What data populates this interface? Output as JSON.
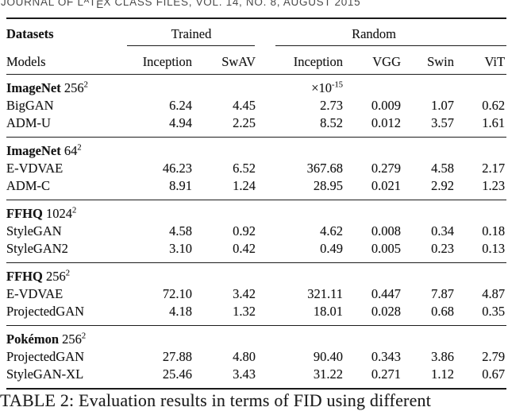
{
  "journal_header": {
    "p1": "JOURNAL OF L",
    "a": "A",
    "t": "T",
    "e": "E",
    "p2": "X CLASS FILES, VOL. 14, NO. 8, AUGUST 2015"
  },
  "table": {
    "col_group_label": "Datasets",
    "col_model_label": "Models",
    "groups": [
      {
        "label": "Trained"
      },
      {
        "label": "Random"
      }
    ],
    "columns": [
      "Inception",
      "SwAV",
      "Inception",
      "VGG",
      "Swin",
      "ViT"
    ],
    "sections": [
      {
        "dataset": "ImageNet",
        "resolution": "256",
        "sup": "2",
        "note_base": "×10",
        "note_exp": "-15",
        "rows": [
          {
            "model": "BigGAN",
            "values": [
              "6.24",
              "4.45",
              "2.73",
              "0.009",
              "1.07",
              "0.62"
            ]
          },
          {
            "model": "ADM-U",
            "values": [
              "4.94",
              "2.25",
              "8.52",
              "0.012",
              "3.57",
              "1.61"
            ]
          }
        ]
      },
      {
        "dataset": "ImageNet",
        "resolution": "64",
        "sup": "2",
        "rows": [
          {
            "model": "E-VDVAE",
            "values": [
              "46.23",
              "6.52",
              "367.68",
              "0.279",
              "4.58",
              "2.17"
            ]
          },
          {
            "model": "ADM-C",
            "values": [
              "8.91",
              "1.24",
              "28.95",
              "0.021",
              "2.92",
              "1.23"
            ]
          }
        ]
      },
      {
        "dataset": "FFHQ",
        "resolution": "1024",
        "sup": "2",
        "rows": [
          {
            "model": "StyleGAN",
            "values": [
              "4.58",
              "0.92",
              "4.62",
              "0.008",
              "0.34",
              "0.18"
            ]
          },
          {
            "model": "StyleGAN2",
            "values": [
              "3.10",
              "0.42",
              "0.49",
              "0.005",
              "0.23",
              "0.13"
            ]
          }
        ]
      },
      {
        "dataset": "FFHQ",
        "resolution": "256",
        "sup": "2",
        "rows": [
          {
            "model": "E-VDVAE",
            "values": [
              "72.10",
              "3.42",
              "321.11",
              "0.447",
              "7.87",
              "4.87"
            ]
          },
          {
            "model": "ProjectedGAN",
            "values": [
              "4.18",
              "1.32",
              "18.01",
              "0.028",
              "0.68",
              "0.35"
            ]
          }
        ]
      },
      {
        "dataset": "Pokémon",
        "resolution": "256",
        "sup": "2",
        "rows": [
          {
            "model": "ProjectedGAN",
            "values": [
              "27.88",
              "4.80",
              "90.40",
              "0.343",
              "3.86",
              "2.79"
            ]
          },
          {
            "model": "StyleGAN-XL",
            "values": [
              "25.46",
              "3.43",
              "31.22",
              "0.271",
              "1.12",
              "0.67"
            ]
          }
        ]
      }
    ]
  },
  "caption": "TABLE 2: Evaluation results in terms of FID using different",
  "colors": {
    "text": "#151515",
    "rule": "#1a1a1a",
    "header_gray": "#4a4a4a",
    "background": "#ffffff"
  }
}
